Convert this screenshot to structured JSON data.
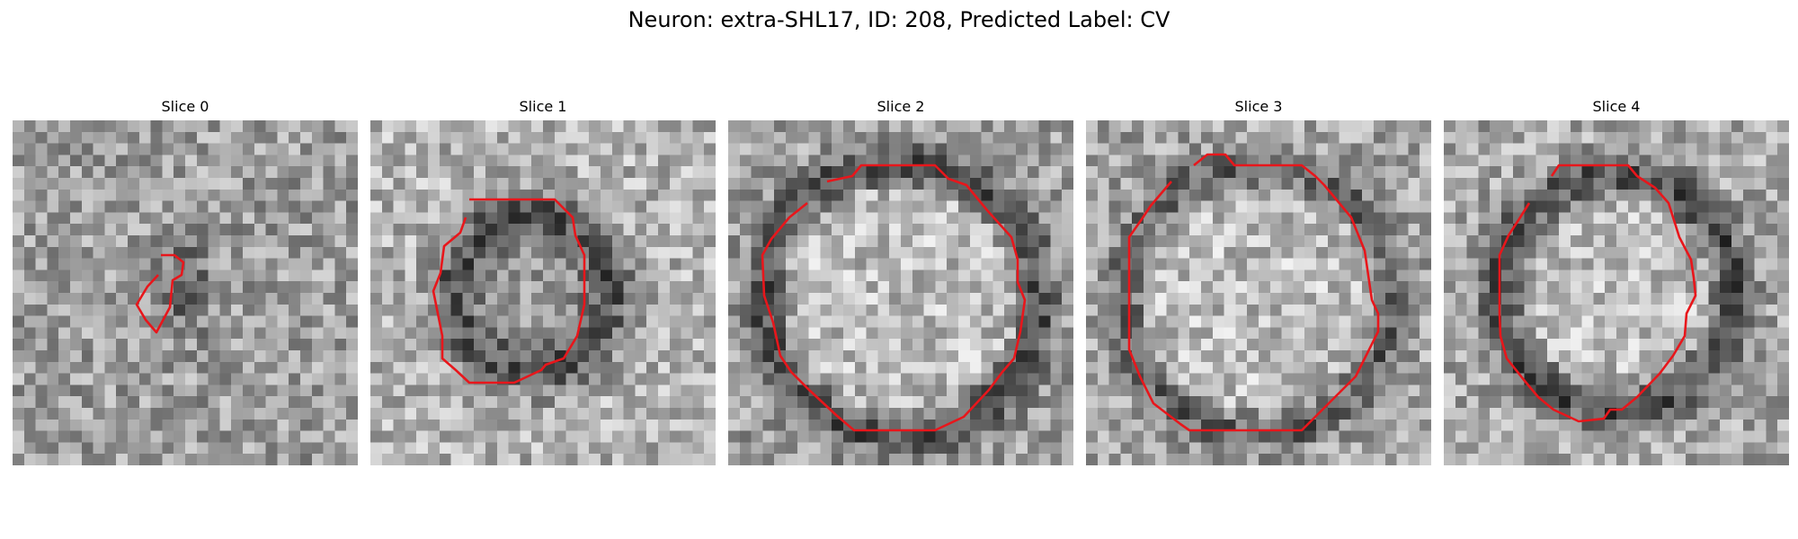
{
  "title": "Neuron: extra-SHL17, ID: 208, Predicted Label: CV",
  "contour_color": "#e8161b",
  "slices": [
    {
      "label": "Slice 0"
    },
    {
      "label": "Slice 1"
    },
    {
      "label": "Slice 2"
    },
    {
      "label": "Slice 3"
    },
    {
      "label": "Slice 4"
    }
  ]
}
